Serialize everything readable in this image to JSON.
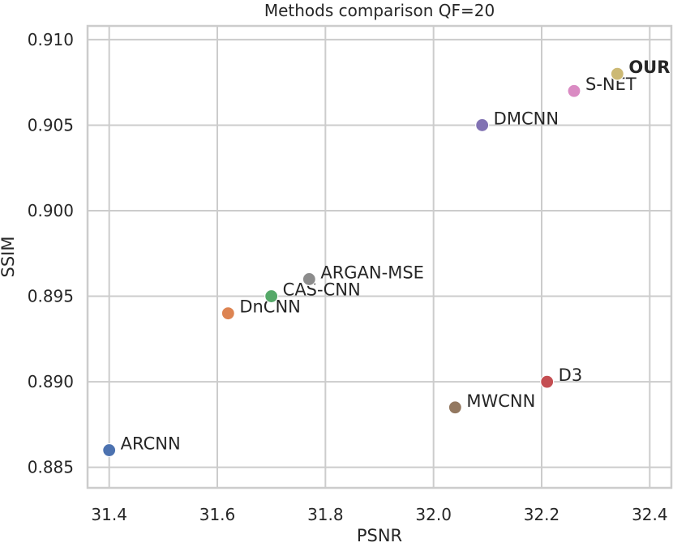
{
  "chart_data": {
    "type": "scatter",
    "title": "Methods comparison QF=20",
    "xlabel": "PSNR",
    "ylabel": "SSIM",
    "xlim": [
      31.36,
      32.44
    ],
    "ylim": [
      0.8838,
      0.9108
    ],
    "xticks": [
      "31.4",
      "31.6",
      "31.8",
      "32.0",
      "32.2",
      "32.4"
    ],
    "xtick_values": [
      31.4,
      31.6,
      31.8,
      32.0,
      32.2,
      32.4
    ],
    "yticks": [
      "0.885",
      "0.890",
      "0.895",
      "0.900",
      "0.905",
      "0.910"
    ],
    "ytick_values": [
      0.885,
      0.89,
      0.895,
      0.9,
      0.905,
      0.91
    ],
    "grid": true,
    "points": [
      {
        "name": "ARCNN",
        "x": 31.4,
        "y": 0.886,
        "color": "#4c72b0",
        "bold": false
      },
      {
        "name": "DnCNN",
        "x": 31.62,
        "y": 0.894,
        "color": "#dd8452",
        "bold": false
      },
      {
        "name": "CAS-CNN",
        "x": 31.7,
        "y": 0.895,
        "color": "#55a868",
        "bold": false
      },
      {
        "name": "ARGAN-MSE",
        "x": 31.77,
        "y": 0.896,
        "color": "#8c8c8c",
        "bold": false
      },
      {
        "name": "MWCNN",
        "x": 32.04,
        "y": 0.8885,
        "color": "#937860",
        "bold": false
      },
      {
        "name": "D3",
        "x": 32.21,
        "y": 0.89,
        "color": "#c44e52",
        "bold": false
      },
      {
        "name": "DMCNN",
        "x": 32.09,
        "y": 0.905,
        "color": "#8172b3",
        "bold": false
      },
      {
        "name": "S-NET",
        "x": 32.26,
        "y": 0.907,
        "color": "#da8bc3",
        "bold": false
      },
      {
        "name": "OUR",
        "x": 32.34,
        "y": 0.908,
        "color": "#ccb974",
        "bold": true
      }
    ]
  }
}
